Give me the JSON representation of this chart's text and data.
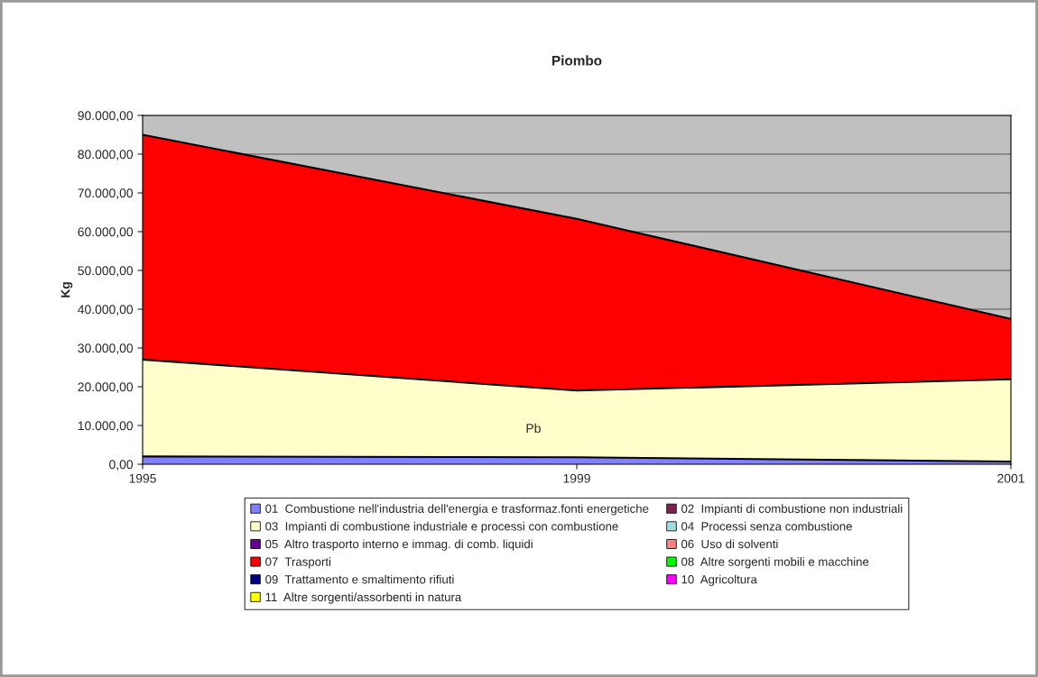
{
  "chart_data": {
    "type": "area",
    "stacked": true,
    "title": "Piombo",
    "ylabel": "Kg",
    "categories": [
      "1995",
      "1999",
      "2001"
    ],
    "series": [
      {
        "name": "01  Combustione nell'industria dell'energia e trasformaz.fonti energetiche",
        "color": "#8080ff",
        "values": [
          2000,
          1800,
          700
        ]
      },
      {
        "name": "02  Impianti di combustione non industriali",
        "color": "#802050",
        "values": [
          null,
          null,
          null
        ]
      },
      {
        "name": "03  Impianti di combustione industriale e processi con combustione",
        "color": "#ffffcc",
        "values": [
          25000,
          17200,
          21200
        ]
      },
      {
        "name": "04  Processi senza combustione",
        "color": "#a0e0e0",
        "values": [
          null,
          null,
          null
        ]
      },
      {
        "name": "05  Altro trasporto interno e immag. di comb. liquidi",
        "color": "#660099",
        "values": [
          null,
          null,
          null
        ]
      },
      {
        "name": "06  Uso di solventi",
        "color": "#ff8080",
        "values": [
          null,
          null,
          null
        ]
      },
      {
        "name": "07  Trasporti",
        "color": "#ff0000",
        "values": [
          58000,
          44300,
          15600
        ]
      },
      {
        "name": "08  Altre sorgenti mobili e macchine",
        "color": "#00ff00",
        "values": [
          null,
          null,
          null
        ]
      },
      {
        "name": "09  Trattamento e smaltimento rifiuti",
        "color": "#000080",
        "values": [
          null,
          null,
          null
        ]
      },
      {
        "name": "10  Agricoltura",
        "color": "#ff00ff",
        "values": [
          null,
          null,
          null
        ]
      },
      {
        "name": "11  Altre sorgenti/assorbenti in natura",
        "color": "#ffff00",
        "values": [
          null,
          null,
          null
        ]
      }
    ],
    "ylim": [
      0,
      90000
    ],
    "yticks": [
      {
        "value": 0,
        "label": "0,00"
      },
      {
        "value": 10000,
        "label": "10.000,00"
      },
      {
        "value": 20000,
        "label": "20.000,00"
      },
      {
        "value": 30000,
        "label": "30.000,00"
      },
      {
        "value": 40000,
        "label": "40.000,00"
      },
      {
        "value": 50000,
        "label": "50.000,00"
      },
      {
        "value": 60000,
        "label": "60.000,00"
      },
      {
        "value": 70000,
        "label": "70.000,00"
      },
      {
        "value": 80000,
        "label": "80.000,00"
      },
      {
        "value": 90000,
        "label": "90.000,00"
      }
    ],
    "annotations": [
      "Pb"
    ],
    "grid": "y",
    "legend": "bottom"
  }
}
